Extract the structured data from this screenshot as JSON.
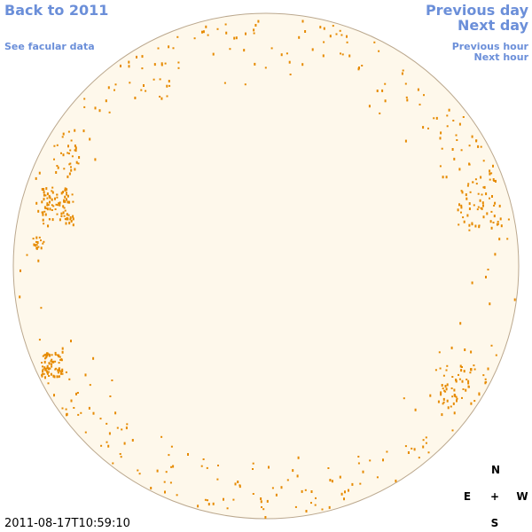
{
  "header": {
    "back": "Back to 2011",
    "facular_data": "See facular data",
    "previous_day": "Previous day",
    "next_day": "Next day",
    "previous_hour": "Previous hour",
    "next_hour": "Next hour"
  },
  "compass": {
    "north": "N",
    "east": "E",
    "center": "+",
    "west": "W",
    "south": "S"
  },
  "timestamp": "2011-08-17T10:59:10"
}
